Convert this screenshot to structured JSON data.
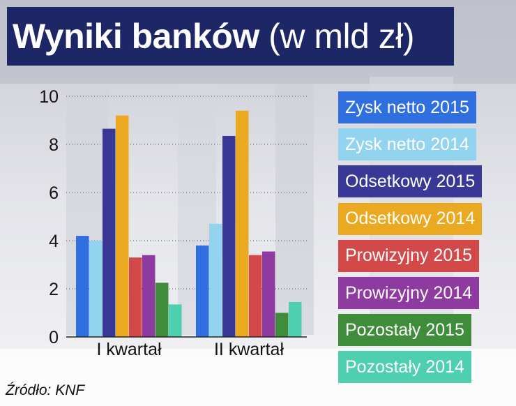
{
  "title": {
    "main": "Wyniki banków",
    "unit": "(w mld zł)"
  },
  "source": "Źródło: KNF",
  "colors": {
    "title_background": "#1d2766",
    "grid": "#555555",
    "axis": "#222222"
  },
  "chart_data": {
    "type": "bar",
    "title": "Wyniki banków (w mld zł)",
    "xlabel": "",
    "ylabel": "",
    "ylim": [
      0,
      10
    ],
    "yticks": [
      0,
      2,
      4,
      6,
      8,
      10
    ],
    "grid": "horizontal-dotted",
    "legend_position": "right",
    "categories": [
      "I kwartał",
      "II kwartał"
    ],
    "series": [
      {
        "name": "Zysk netto 2015",
        "color": "#2f6fe0",
        "values": [
          4.2,
          3.8
        ]
      },
      {
        "name": "Zysk netto 2014",
        "color": "#92d4ef",
        "values": [
          4.0,
          4.7
        ]
      },
      {
        "name": "Odsetkowy 2015",
        "color": "#3a3896",
        "values": [
          8.65,
          8.35
        ]
      },
      {
        "name": "Odsetkowy 2014",
        "color": "#eba821",
        "values": [
          9.2,
          9.4
        ]
      },
      {
        "name": "Prowizyjny 2015",
        "color": "#d34848",
        "values": [
          3.3,
          3.4
        ]
      },
      {
        "name": "Prowizyjny 2014",
        "color": "#8e3aa0",
        "values": [
          3.4,
          3.55
        ]
      },
      {
        "name": "Pozostały 2015",
        "color": "#3f8c3a",
        "values": [
          2.25,
          1.0
        ]
      },
      {
        "name": "Pozostały 2014",
        "color": "#4ecfb0",
        "values": [
          1.35,
          1.45
        ]
      }
    ]
  }
}
